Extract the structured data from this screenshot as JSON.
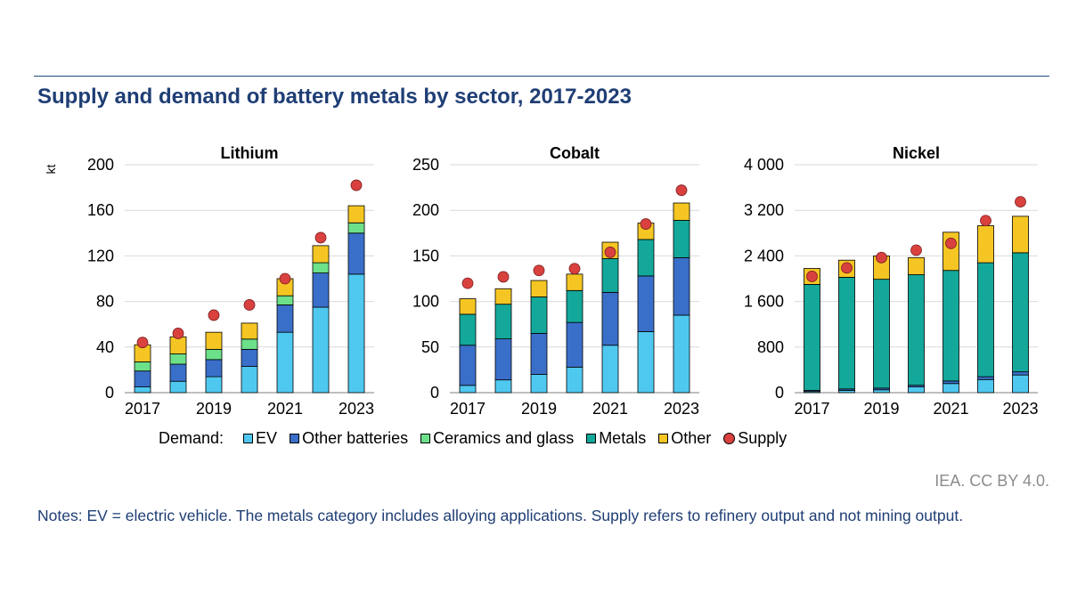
{
  "title": "Supply and demand of battery metals by sector, 2017-2023",
  "source": "IEA. CC BY 4.0.",
  "notes": "Notes: EV = electric vehicle. The metals category includes alloying applications. Supply refers to refinery output and not mining output.",
  "legend": {
    "label": "Demand:",
    "items": [
      {
        "key": "ev",
        "label": "EV",
        "color": "#4fc8f0"
      },
      {
        "key": "other_batteries",
        "label": "Other batteries",
        "color": "#3a6fc9"
      },
      {
        "key": "ceramics",
        "label": "Ceramics and glass",
        "color": "#6de08a"
      },
      {
        "key": "metals",
        "label": "Metals",
        "color": "#13a89a"
      },
      {
        "key": "other",
        "label": "Other",
        "color": "#f5c623"
      },
      {
        "key": "supply",
        "label": "Supply",
        "color": "#d9413f",
        "marker": "dot"
      }
    ]
  },
  "chart_data": [
    {
      "type": "bar",
      "stacked": true,
      "title": "Lithium",
      "ylabel": "kt",
      "ylim": [
        0,
        200
      ],
      "yticks": [
        0,
        40,
        80,
        120,
        160,
        200
      ],
      "ytick_labels": [
        "0",
        "40",
        "80",
        "120",
        "160",
        "200"
      ],
      "categories": [
        "2017",
        "2018",
        "2019",
        "2020",
        "2021",
        "2022",
        "2023"
      ],
      "xtick_labels": [
        "2017",
        "",
        "2019",
        "",
        "2021",
        "",
        "2023"
      ],
      "series": [
        {
          "name": "EV",
          "values": [
            5,
            10,
            14,
            23,
            53,
            75,
            104
          ]
        },
        {
          "name": "Other batteries",
          "values": [
            14,
            15,
            15,
            15,
            24,
            30,
            36
          ]
        },
        {
          "name": "Ceramics and glass",
          "values": [
            8,
            9,
            9,
            9,
            8,
            9,
            9
          ]
        },
        {
          "name": "Metals",
          "values": [
            0,
            0,
            0,
            0,
            0,
            0,
            0
          ]
        },
        {
          "name": "Other",
          "values": [
            15,
            15,
            15,
            14,
            15,
            15,
            15
          ]
        }
      ],
      "supply": [
        44,
        52,
        68,
        77,
        100,
        136,
        182
      ],
      "grid": true
    },
    {
      "type": "bar",
      "stacked": true,
      "title": "Cobalt",
      "ylim": [
        0,
        250
      ],
      "yticks": [
        0,
        50,
        100,
        150,
        200,
        250
      ],
      "ytick_labels": [
        "0",
        "50",
        "100",
        "150",
        "200",
        "250"
      ],
      "categories": [
        "2017",
        "2018",
        "2019",
        "2020",
        "2021",
        "2022",
        "2023"
      ],
      "xtick_labels": [
        "2017",
        "",
        "2019",
        "",
        "2021",
        "",
        "2023"
      ],
      "series": [
        {
          "name": "EV",
          "values": [
            8,
            14,
            20,
            28,
            52,
            67,
            85
          ]
        },
        {
          "name": "Other batteries",
          "values": [
            44,
            45,
            45,
            49,
            58,
            61,
            63
          ]
        },
        {
          "name": "Ceramics and glass",
          "values": [
            0,
            0,
            0,
            0,
            0,
            0,
            0
          ]
        },
        {
          "name": "Metals",
          "values": [
            34,
            38,
            40,
            35,
            37,
            40,
            41
          ]
        },
        {
          "name": "Other",
          "values": [
            17,
            17,
            18,
            18,
            18,
            18,
            19
          ]
        }
      ],
      "supply": [
        120,
        127,
        134,
        136,
        154,
        185,
        222
      ],
      "grid": true
    },
    {
      "type": "bar",
      "stacked": true,
      "title": "Nickel",
      "ylim": [
        0,
        4000
      ],
      "yticks": [
        0,
        800,
        1600,
        2400,
        3200,
        4000
      ],
      "ytick_labels": [
        "0",
        "800",
        "1 600",
        "2 400",
        "3 200",
        "4 000"
      ],
      "categories": [
        "2017",
        "2018",
        "2019",
        "2020",
        "2021",
        "2022",
        "2023"
      ],
      "xtick_labels": [
        "2017",
        "",
        "2019",
        "",
        "2021",
        "",
        "2023"
      ],
      "series": [
        {
          "name": "EV",
          "values": [
            20,
            40,
            50,
            100,
            160,
            230,
            310
          ]
        },
        {
          "name": "Other batteries",
          "values": [
            20,
            25,
            30,
            30,
            45,
            50,
            55
          ]
        },
        {
          "name": "Ceramics and glass",
          "values": [
            0,
            0,
            0,
            0,
            0,
            0,
            0
          ]
        },
        {
          "name": "Metals",
          "values": [
            1860,
            1960,
            1910,
            1940,
            1940,
            2000,
            2090
          ]
        },
        {
          "name": "Other",
          "values": [
            280,
            300,
            410,
            300,
            670,
            650,
            640
          ]
        }
      ],
      "supply": [
        2040,
        2190,
        2370,
        2500,
        2620,
        3020,
        3350
      ],
      "grid": true
    }
  ]
}
